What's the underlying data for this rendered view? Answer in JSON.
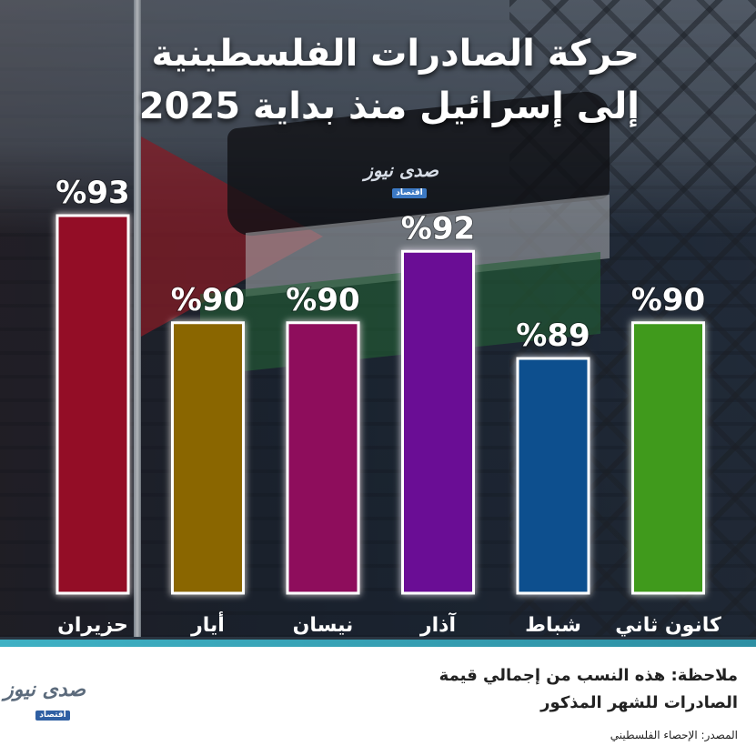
{
  "header": {
    "title_line1": "حركة الصادرات الفلسطينية",
    "title_line2": "إلى إسرائيل منذ بداية 2025"
  },
  "logo": {
    "main": "صدى نيوز",
    "sub": "اقتصاد"
  },
  "colors": {
    "accent_line": "#3fb1c4",
    "bar_kanun2": "#3f9a1c",
    "bar_shbat": "#0d4f8e",
    "bar_adhar": "#6a0f95",
    "bar_nisan": "#8e0a5c",
    "bar_ayar": "#8a6600",
    "bar_haziran": "#930a28"
  },
  "chart_data": {
    "type": "bar",
    "title": "حركة الصادرات الفلسطينية إلى إسرائيل منذ بداية 2025",
    "categories": [
      "حزيران",
      "أيار",
      "نيسان",
      "آذار",
      "شباط",
      "كانون ثاني"
    ],
    "values": [
      93,
      90,
      90,
      92,
      89,
      90
    ],
    "value_labels": [
      "%93",
      "%90",
      "%90",
      "%92",
      "%89",
      "%90"
    ],
    "bar_colors": [
      "#930a28",
      "#8a6600",
      "#8e0a5c",
      "#6a0f95",
      "#0d4f8e",
      "#3f9a1c"
    ],
    "ylim": [
      80,
      94
    ],
    "xlabel": "",
    "ylabel": "",
    "grid": false,
    "legend": "none"
  },
  "footer": {
    "note_line1": "ملاحظة: هذه النسب من إجمالي قيمة",
    "note_line2": "الصادرات للشهر المذكور",
    "source": "المصدر: الإحصاء الفلسطيني"
  }
}
